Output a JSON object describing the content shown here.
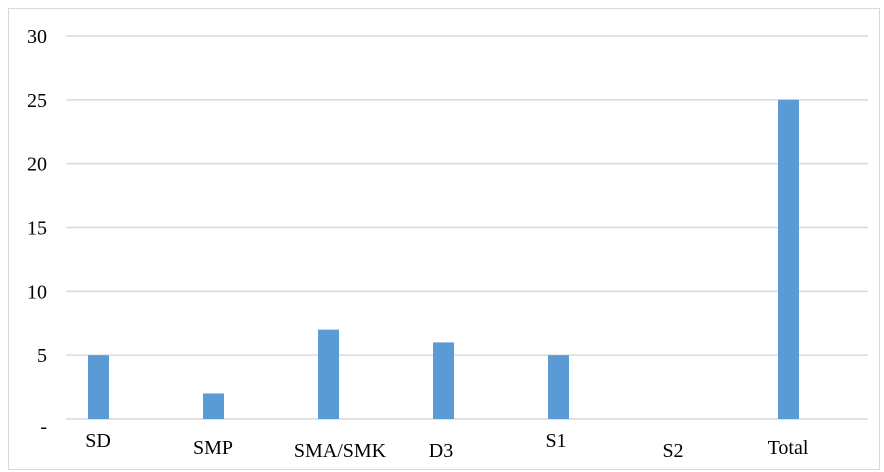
{
  "chart_data": {
    "type": "bar",
    "categories": [
      "SD",
      "SMP",
      "SMA/SMK",
      "D3",
      "S1",
      "S2",
      "Total"
    ],
    "values": [
      5,
      2,
      7,
      6,
      5,
      0,
      25
    ],
    "y_ticks": [
      "30",
      "25",
      "20",
      "15",
      "10",
      "5",
      "-"
    ],
    "ylim": [
      0,
      30
    ],
    "grid": true,
    "legend": "none",
    "colors": {
      "bar": "#5b9bd5",
      "grid": "#d9d9d9",
      "frame": "#d9d9d9"
    }
  }
}
